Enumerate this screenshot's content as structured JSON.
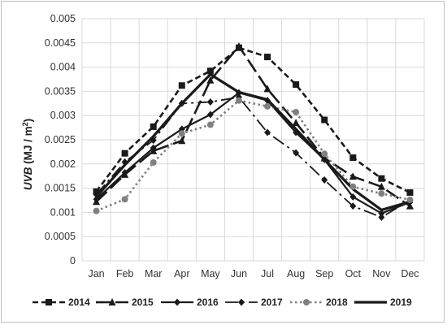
{
  "chart_data": {
    "type": "line",
    "title": "",
    "xlabel": "",
    "ylabel": {
      "var": "UVB",
      "unit_open": " (MJ / m",
      "unit_exp": "2",
      "unit_close": ")"
    },
    "categories": [
      "Jan",
      "Feb",
      "Mar",
      "Apr",
      "May",
      "Jun",
      "Jul",
      "Aug",
      "Sep",
      "Oct",
      "Nov",
      "Dec"
    ],
    "ylim": [
      0,
      0.005
    ],
    "yticks": [
      {
        "value": 0,
        "label": "0"
      },
      {
        "value": 0.0005,
        "label": "0.0005"
      },
      {
        "value": 0.001,
        "label": "0.001"
      },
      {
        "value": 0.0015,
        "label": "0.0015"
      },
      {
        "value": 0.002,
        "label": "0.002"
      },
      {
        "value": 0.0025,
        "label": "0.0025"
      },
      {
        "value": 0.003,
        "label": "0.003"
      },
      {
        "value": 0.0035,
        "label": "0.0035"
      },
      {
        "value": 0.004,
        "label": "0.004"
      },
      {
        "value": 0.0045,
        "label": "0.0045"
      },
      {
        "value": 0.005,
        "label": "0.005"
      }
    ],
    "grid": true,
    "legend_position": "bottom",
    "series": [
      {
        "name": "2014",
        "color": "#1a1a1a",
        "dash": "short-dash",
        "marker": "square",
        "values": [
          0.00143,
          0.00222,
          0.00277,
          0.00362,
          0.00392,
          0.0044,
          0.00421,
          0.00364,
          0.00291,
          0.00213,
          0.0017,
          0.00141
        ]
      },
      {
        "name": "2015",
        "color": "#1a1a1a",
        "dash": "long-dash",
        "marker": "triangle",
        "values": [
          0.00122,
          0.00178,
          0.00227,
          0.00248,
          0.00373,
          0.00443,
          0.00355,
          0.00285,
          0.00212,
          0.00174,
          0.00153,
          0.00113
        ]
      },
      {
        "name": "2016",
        "color": "#1a1a1a",
        "dash": "solid",
        "marker": "diamond",
        "values": [
          0.00127,
          0.00182,
          0.00233,
          0.00272,
          0.00302,
          0.00347,
          0.00331,
          0.00265,
          0.00209,
          0.00132,
          0.00098,
          0.00121
        ]
      },
      {
        "name": "2017",
        "color": "#1a1a1a",
        "dash": "long-dash-dot",
        "marker": "diamond",
        "values": [
          0.00137,
          0.00204,
          0.00249,
          0.00325,
          0.00328,
          0.00338,
          0.00265,
          0.00223,
          0.00167,
          0.00113,
          0.0009,
          0.00125
        ]
      },
      {
        "name": "2018",
        "color": "#808080",
        "dash": "dot",
        "marker": "circle",
        "values": [
          0.00103,
          0.00127,
          0.00203,
          0.00263,
          0.00281,
          0.00331,
          0.00319,
          0.00307,
          0.00221,
          0.00153,
          0.00139,
          0.00126
        ]
      },
      {
        "name": "2019",
        "color": "#1a1a1a",
        "dash": "solid-thick",
        "marker": "none",
        "values": [
          0.00132,
          0.00198,
          0.00257,
          0.00325,
          0.00385,
          0.00348,
          0.00333,
          0.00272,
          0.00209,
          0.00148,
          0.00105,
          0.00122
        ]
      }
    ]
  }
}
